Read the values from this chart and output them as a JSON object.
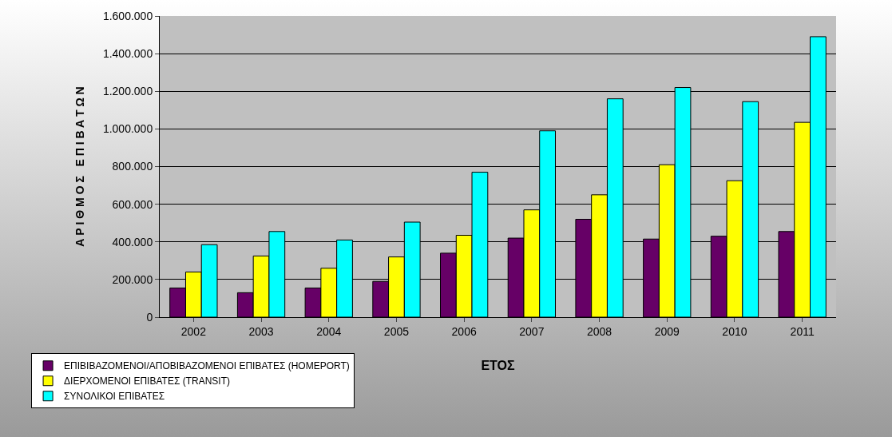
{
  "chart_data": {
    "type": "bar",
    "xlabel": "ΕΤΟΣ",
    "ylabel": "Α Ρ Ι Θ Μ Ο Σ   Ε Π Ι Β Α Τ Ω Ν",
    "categories": [
      "2002",
      "2003",
      "2004",
      "2005",
      "2006",
      "2007",
      "2008",
      "2009",
      "2010",
      "2011"
    ],
    "series": [
      {
        "name": "ΕΠΙΒΙΒΑΖΟΜΕΝΟΙ/ΑΠΟΒΙΒΑΖΟΜΕΝΟΙ ΕΠΙΒΑΤΕΣ (HOMEPORT)",
        "color": "#660066",
        "values": [
          155000,
          130000,
          155000,
          190000,
          340000,
          420000,
          520000,
          415000,
          430000,
          455000
        ]
      },
      {
        "name": "ΔΙΕΡΧΟΜΕΝΟΙ ΕΠΙΒΑΤΕΣ (TRANSIT)",
        "color": "#ffff00",
        "values": [
          240000,
          325000,
          260000,
          320000,
          435000,
          570000,
          650000,
          810000,
          725000,
          1035000
        ]
      },
      {
        "name": "ΣΥΝΟΛΙΚΟΙ ΕΠΙΒΑΤΕΣ",
        "color": "#00ffff",
        "values": [
          385000,
          455000,
          410000,
          505000,
          770000,
          990000,
          1160000,
          1220000,
          1145000,
          1490000
        ]
      }
    ],
    "ylim": [
      0,
      1600000
    ],
    "yticks": [
      {
        "value": 0,
        "label": "0"
      },
      {
        "value": 200000,
        "label": "200.000"
      },
      {
        "value": 400000,
        "label": "400.000"
      },
      {
        "value": 600000,
        "label": "600.000"
      },
      {
        "value": 800000,
        "label": "800.000"
      },
      {
        "value": 1000000,
        "label": "1.000.000"
      },
      {
        "value": 1200000,
        "label": "1.200.000"
      },
      {
        "value": 1400000,
        "label": "1.400.000"
      },
      {
        "value": 1600000,
        "label": "1.600.000"
      }
    ],
    "grid": "y",
    "legend": "bottom left"
  }
}
